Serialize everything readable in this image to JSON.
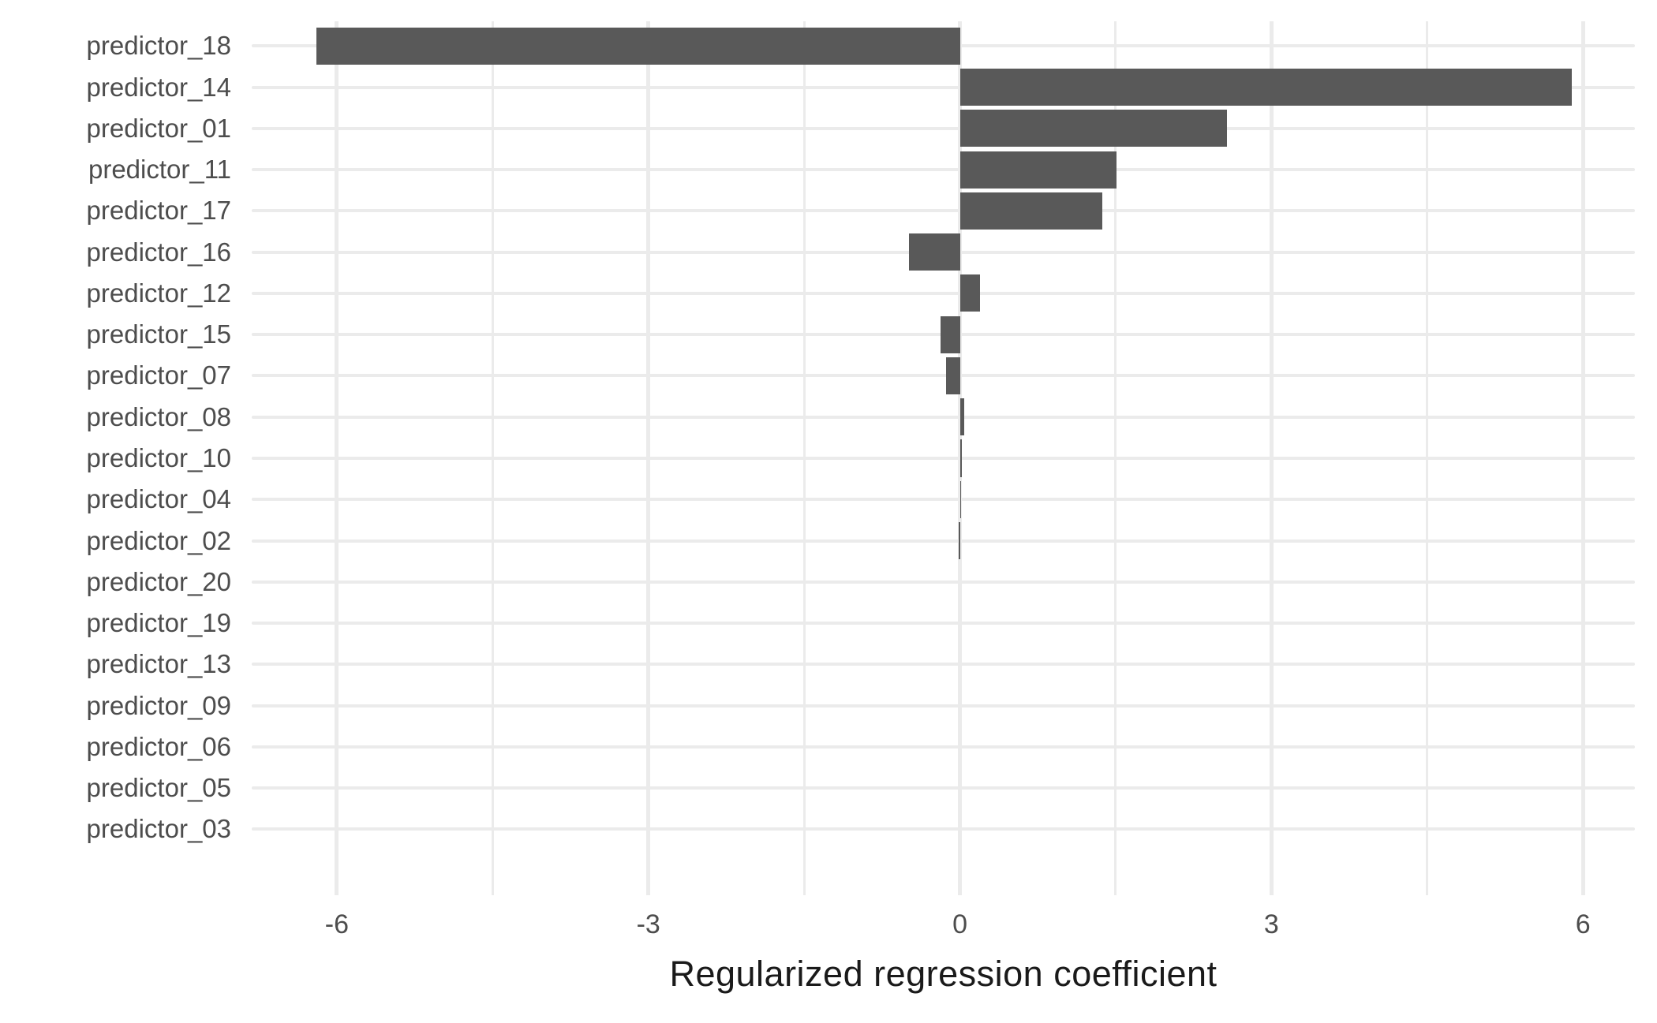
{
  "chart_data": {
    "type": "bar",
    "orientation": "horizontal",
    "title": "",
    "xlabel": "Regularized regression coefficient",
    "ylabel": "",
    "categories": [
      "predictor_18",
      "predictor_14",
      "predictor_01",
      "predictor_11",
      "predictor_17",
      "predictor_16",
      "predictor_12",
      "predictor_15",
      "predictor_07",
      "predictor_08",
      "predictor_10",
      "predictor_04",
      "predictor_02",
      "predictor_20",
      "predictor_19",
      "predictor_13",
      "predictor_09",
      "predictor_06",
      "predictor_05",
      "predictor_03"
    ],
    "values": [
      -6.2,
      5.89,
      2.57,
      1.51,
      1.37,
      -0.49,
      0.19,
      -0.19,
      -0.13,
      0.04,
      0.02,
      0.01,
      -0.01,
      0,
      0,
      0,
      0,
      0,
      0,
      0
    ],
    "xlim": [
      -6.82,
      6.5
    ],
    "x_major_ticks": [
      -6,
      -3,
      0,
      3,
      6
    ],
    "x_tick_labels": [
      "-6",
      "-3",
      "0",
      "3",
      "6"
    ],
    "x_minor_ticks": [
      -4.5,
      -1.5,
      1.5,
      4.5
    ],
    "legend_position": "none",
    "grid": "major-and-minor",
    "colors": {
      "bar": "#595959",
      "gridline": "#ebebeb",
      "axis_text": "#4d4d4d",
      "axis_title": "#1a1a1a",
      "background": "#ffffff"
    }
  }
}
